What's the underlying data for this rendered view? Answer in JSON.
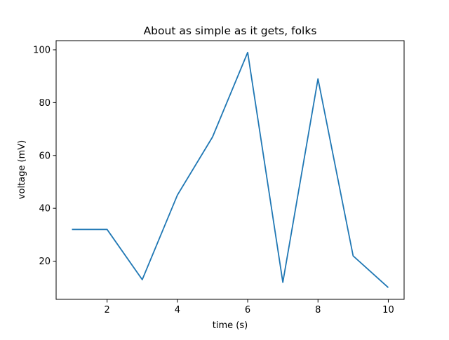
{
  "chart_data": {
    "type": "line",
    "title": "About as simple as it gets, folks",
    "xlabel": "time (s)",
    "ylabel": "voltage (mV)",
    "xlim": [
      0.55,
      10.45
    ],
    "ylim": [
      5.55,
      103.45
    ],
    "xticks": [
      2,
      4,
      6,
      8,
      10
    ],
    "yticks": [
      20,
      40,
      60,
      80,
      100
    ],
    "grid": false,
    "series": [
      {
        "color": "#1f77b4",
        "x": [
          1,
          2,
          3,
          4,
          5,
          6,
          7,
          8,
          9,
          10
        ],
        "y": [
          32,
          32,
          13,
          45,
          67,
          99,
          12,
          89,
          22,
          10
        ]
      }
    ]
  }
}
